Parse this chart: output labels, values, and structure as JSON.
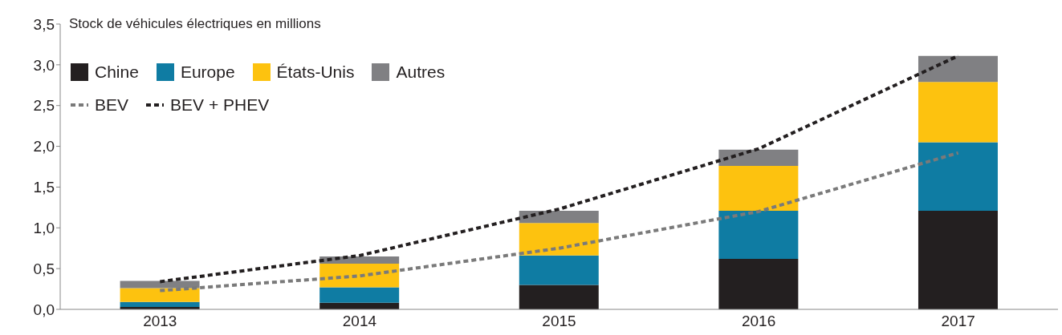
{
  "chart_data": {
    "type": "bar",
    "stacked": true,
    "ylabel": "Stock de véhicules électriques en millions",
    "categories": [
      "2013",
      "2014",
      "2015",
      "2016",
      "2017"
    ],
    "series": [
      {
        "name": "Chine",
        "color": "#231f20",
        "values": [
          0.03,
          0.08,
          0.3,
          0.62,
          1.21
        ]
      },
      {
        "name": "Europe",
        "color": "#0f7ca3",
        "values": [
          0.06,
          0.19,
          0.36,
          0.59,
          0.84
        ]
      },
      {
        "name": "États-Unis",
        "color": "#fdc20f",
        "values": [
          0.17,
          0.29,
          0.4,
          0.55,
          0.74
        ]
      },
      {
        "name": "Autres",
        "color": "#808083",
        "values": [
          0.09,
          0.09,
          0.15,
          0.2,
          0.32
        ]
      },
      {
        "name": "BEV",
        "type": "line",
        "line_style": "dashed",
        "color": "#7a7a7a",
        "values": [
          0.23,
          0.41,
          0.75,
          1.2,
          1.92
        ]
      },
      {
        "name": "BEV + PHEV",
        "type": "line",
        "line_style": "dashed",
        "color": "#231f20",
        "values": [
          0.34,
          0.66,
          1.23,
          1.97,
          3.11
        ]
      }
    ],
    "ylim": [
      0,
      3.5
    ],
    "yticks": [
      {
        "value": 0,
        "label": "0,0"
      },
      {
        "value": 0.5,
        "label": "0,5"
      },
      {
        "value": 1,
        "label": "1,0"
      },
      {
        "value": 1.5,
        "label": "1,5"
      },
      {
        "value": 2,
        "label": "2,0"
      },
      {
        "value": 2.5,
        "label": "2,5"
      },
      {
        "value": 3,
        "label": "3,0"
      },
      {
        "value": 3.5,
        "label": "3,5"
      }
    ],
    "grid": false,
    "legend": "top left"
  }
}
